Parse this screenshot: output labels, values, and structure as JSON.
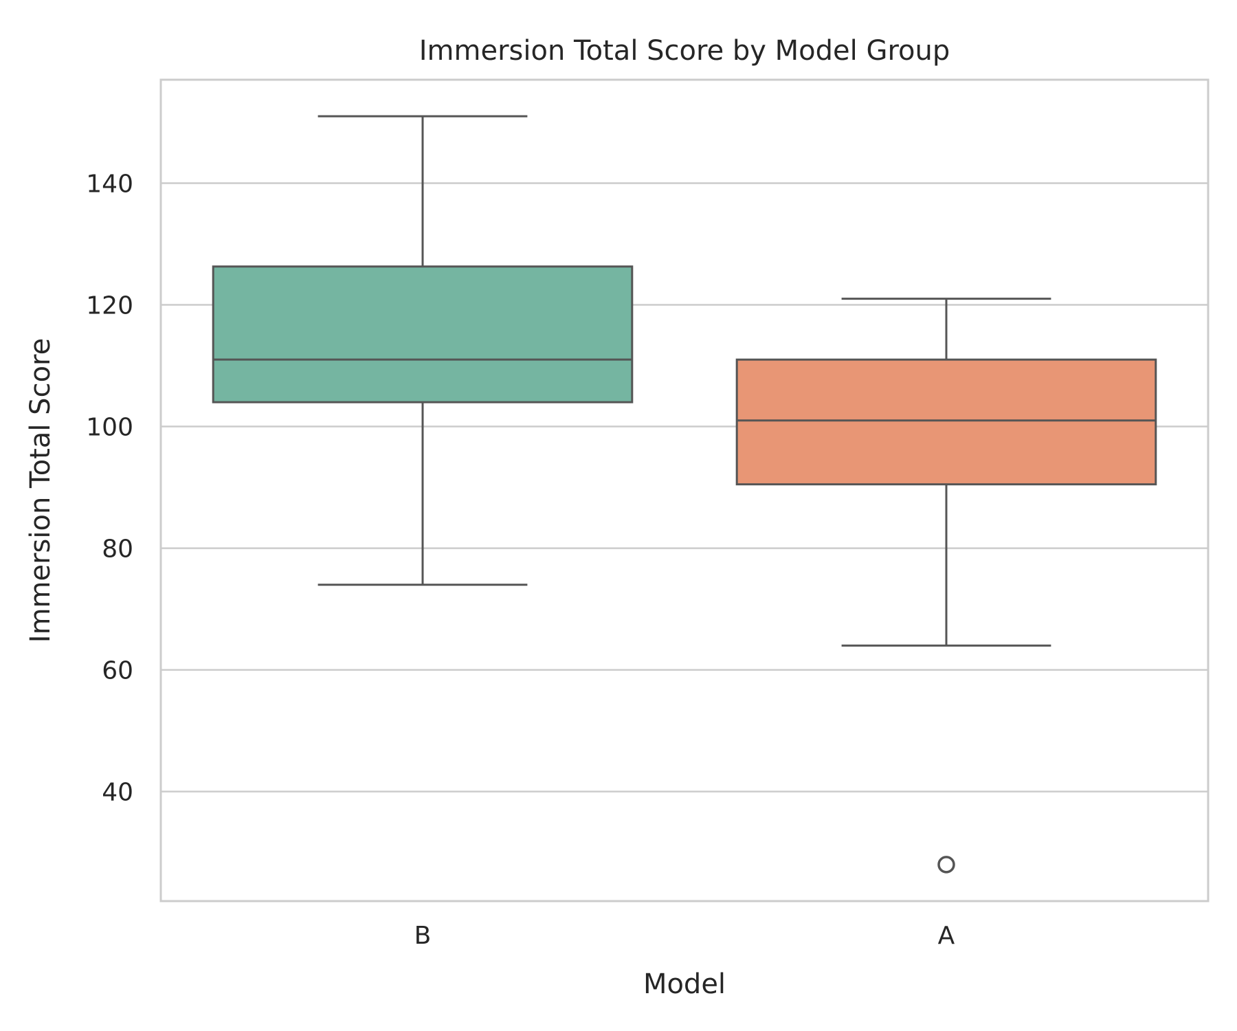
{
  "chart_data": {
    "type": "box",
    "title": "Immersion Total Score by Model Group",
    "xlabel": "Model",
    "ylabel": "Immersion Total Score",
    "ylim": [
      22,
      157
    ],
    "yticks": [
      40,
      60,
      80,
      100,
      120,
      140
    ],
    "grid": "horizontal",
    "categories": [
      "B",
      "A"
    ],
    "boxes": [
      {
        "category": "B",
        "whisker_low": 74,
        "q1": 104,
        "median": 111,
        "q3": 126.3,
        "whisker_high": 151,
        "outliers": [],
        "color": "#75b5a1"
      },
      {
        "category": "A",
        "whisker_low": 64,
        "q1": 90.5,
        "median": 101,
        "q3": 111,
        "whisker_high": 121,
        "outliers": [
          28
        ],
        "color": "#e89675"
      }
    ]
  }
}
